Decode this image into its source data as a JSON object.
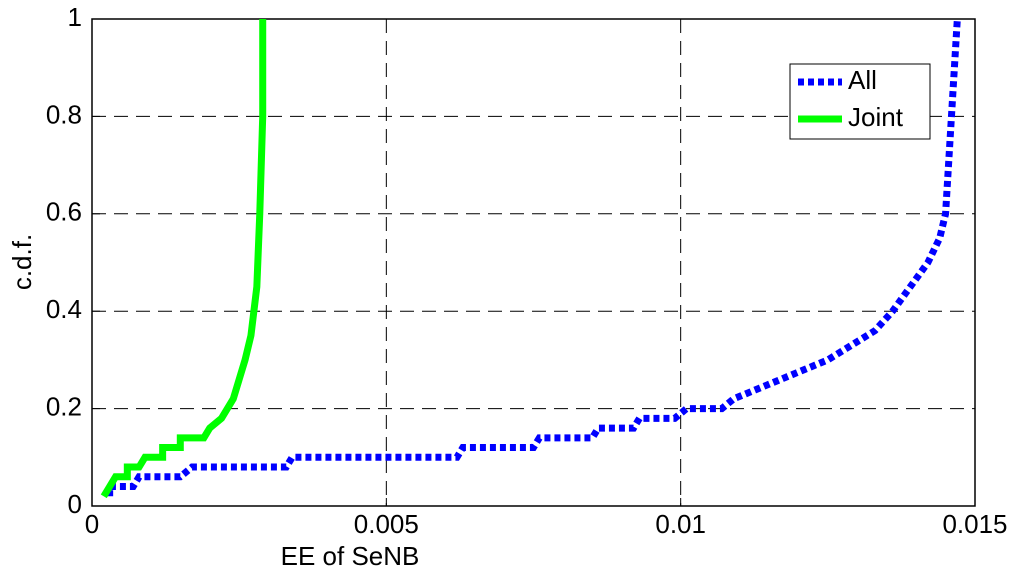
{
  "chart_data": {
    "type": "line",
    "xlabel": "EE of SeNB",
    "ylabel": "c.d.f.",
    "xlim": [
      0,
      0.015
    ],
    "ylim": [
      0,
      1
    ],
    "xticks": [
      0,
      0.005,
      0.01,
      0.015
    ],
    "yticks": [
      0,
      0.2,
      0.4,
      0.6,
      0.8,
      1
    ],
    "grid": true,
    "legend": "upper right",
    "series": [
      {
        "name": "All",
        "color": "#0000ff",
        "dash": "dotted",
        "x": [
          0.0003,
          0.0003,
          0.0007,
          0.0008,
          0.0015,
          0.0017,
          0.0033,
          0.0034,
          0.0062,
          0.0063,
          0.0075,
          0.0076,
          0.0085,
          0.0086,
          0.0092,
          0.0093,
          0.0099,
          0.0101,
          0.0107,
          0.0109,
          0.0113,
          0.0117,
          0.0121,
          0.0125,
          0.0129,
          0.0133,
          0.0136,
          0.0139,
          0.0142,
          0.0144,
          0.0145,
          0.01455,
          0.0146,
          0.01465,
          0.0147
        ],
        "values": [
          0.02,
          0.04,
          0.04,
          0.06,
          0.06,
          0.08,
          0.08,
          0.1,
          0.1,
          0.12,
          0.12,
          0.14,
          0.14,
          0.16,
          0.16,
          0.18,
          0.18,
          0.2,
          0.2,
          0.22,
          0.24,
          0.26,
          0.28,
          0.3,
          0.33,
          0.36,
          0.4,
          0.45,
          0.5,
          0.55,
          0.6,
          0.7,
          0.8,
          0.9,
          1
        ]
      },
      {
        "name": "Joint",
        "color": "#00ff00",
        "dash": "solid",
        "x": [
          0.0002,
          0.0003,
          0.0004,
          0.0006,
          0.0006,
          0.0008,
          0.0009,
          0.0012,
          0.0012,
          0.0015,
          0.0015,
          0.0019,
          0.002,
          0.0022,
          0.0023,
          0.0024,
          0.0025,
          0.0026,
          0.0027,
          0.0028,
          0.00285,
          0.0029,
          0.0029
        ],
        "values": [
          0.02,
          0.04,
          0.06,
          0.06,
          0.08,
          0.08,
          0.1,
          0.1,
          0.12,
          0.12,
          0.14,
          0.14,
          0.16,
          0.18,
          0.2,
          0.22,
          0.26,
          0.3,
          0.35,
          0.45,
          0.6,
          0.8,
          1
        ]
      }
    ]
  }
}
